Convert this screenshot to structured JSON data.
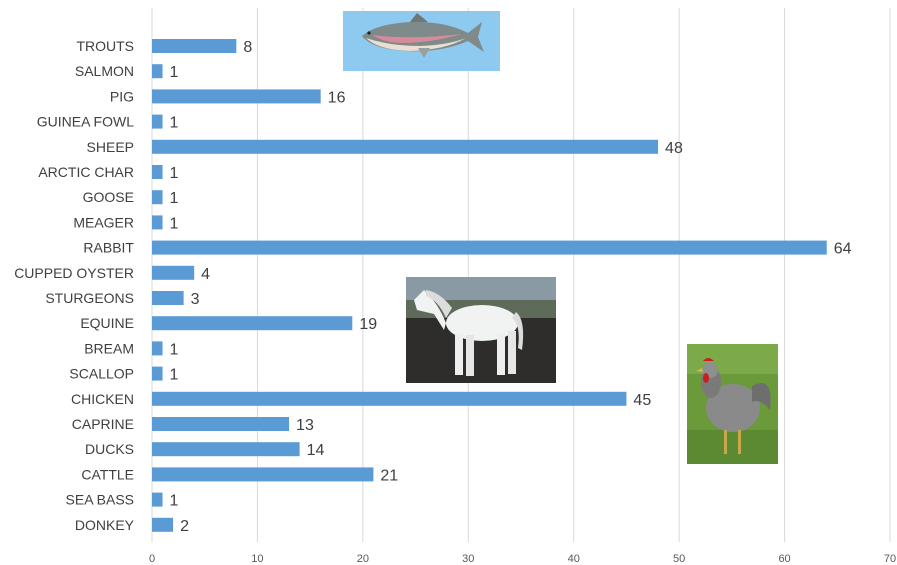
{
  "chart_data": {
    "type": "bar",
    "orientation": "horizontal",
    "title": "",
    "xlabel": "",
    "ylabel": "",
    "categories": [
      "TROUTS",
      "SALMON",
      "PIG",
      "GUINEA FOWL",
      "SHEEP",
      "ARCTIC CHAR",
      "GOOSE",
      "MEAGER",
      "RABBIT",
      "CUPPED OYSTER",
      "STURGEONS",
      "EQUINE",
      "BREAM",
      "SCALLOP",
      "CHICKEN",
      "CAPRINE",
      "DUCKS",
      "CATTLE",
      "SEA BASS",
      "DONKEY"
    ],
    "values": [
      8,
      1,
      16,
      1,
      48,
      1,
      1,
      1,
      64,
      4,
      3,
      19,
      1,
      1,
      45,
      13,
      14,
      21,
      1,
      2
    ],
    "value_labels": [
      "8",
      "1",
      "16",
      "1",
      "48",
      "1",
      "1",
      "1",
      "64",
      "4",
      "3",
      "19",
      "1",
      "1",
      "45",
      "13",
      "14",
      "21",
      "1",
      "2"
    ],
    "xlim": [
      0,
      70
    ],
    "x_ticks": [
      0,
      10,
      20,
      30,
      40,
      50,
      60,
      70
    ],
    "x_tick_labels": [
      "0",
      "10",
      "20",
      "30",
      "40",
      "50",
      "60",
      "70"
    ],
    "grid": true,
    "legend": "none",
    "bar_color": "#5b9bd5",
    "images": [
      "trout-picture",
      "horse-picture",
      "chicken-picture"
    ]
  }
}
